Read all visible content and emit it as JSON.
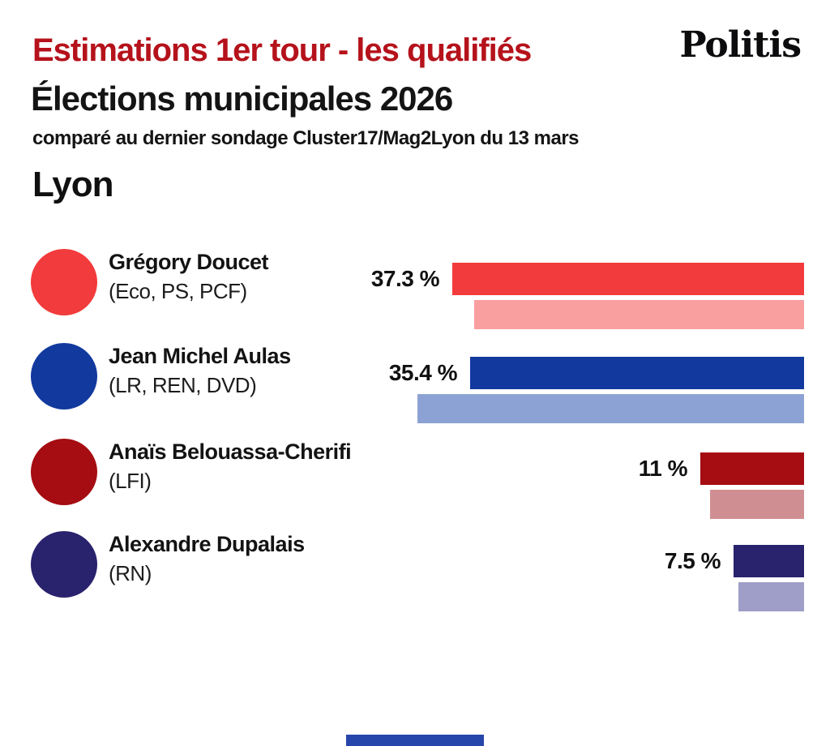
{
  "header": {
    "title": "Estimations 1er tour - les qualifiés",
    "brand": "Politis",
    "subtitle": "Élections municipales 2026",
    "note": "comparé au dernier sondage Cluster17/Mag2Lyon du 13 mars",
    "city": "Lyon"
  },
  "colors": {
    "title_red": "#b5121b",
    "text": "#131313",
    "background": "#ffffff",
    "accent_bottom": "#2746ab"
  },
  "chart_data": {
    "type": "bar",
    "orientation": "horizontal, right-aligned bars",
    "title": "Lyon",
    "unit": "%",
    "xlim": [
      0,
      41
    ],
    "legend_note": "solid bar = estimation 1er tour; lighter bar = dernier sondage Cluster17/Mag2Lyon du 13 mars (valeurs estimées depuis les longueurs de barres)",
    "rows": [
      {
        "name": "Grégory Doucet",
        "party": "(Eco, PS, PCF)",
        "label": "37.3 %",
        "value": 37.3,
        "poll_value": 35,
        "color": "#f23b3c",
        "poll_color": "#f99fa0"
      },
      {
        "name": "Jean Michel Aulas",
        "party": "(LR, REN, DVD)",
        "label": "35.4 %",
        "value": 35.4,
        "poll_value": 41,
        "color": "#12399e",
        "poll_color": "#8da2d4"
      },
      {
        "name": "Anaïs Belouassa-Cherifi",
        "party": "(LFI)",
        "label": "11 %",
        "value": 11,
        "poll_value": 10,
        "color": "#a50d13",
        "poll_color": "#cf8f92"
      },
      {
        "name": "Alexandre Dupalais",
        "party": "(RN)",
        "label": "7.5 %",
        "value": 7.5,
        "poll_value": 7,
        "color": "#29226d",
        "poll_color": "#9f9ec8"
      }
    ]
  }
}
